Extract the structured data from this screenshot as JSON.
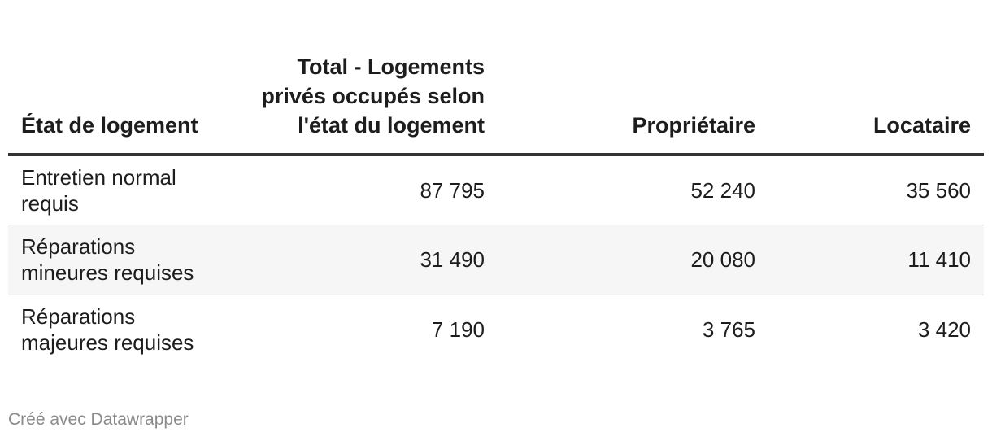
{
  "chart_data": {
    "type": "table",
    "columns": [
      "État de logement",
      "Total - Logements privés occupés selon l'état du logement",
      "Propriétaire",
      "Locataire"
    ],
    "rows": [
      {
        "label": "Entretien normal requis",
        "total": "87 795",
        "owner": "52 240",
        "renter": "35 560"
      },
      {
        "label": "Réparations mineures requises",
        "total": "31 490",
        "owner": "20 080",
        "renter": "11 410"
      },
      {
        "label": "Réparations majeures requises",
        "total": "7 190",
        "owner": "3 765",
        "renter": "3 420"
      }
    ],
    "colors": {
      "header_rule": "#333333",
      "alt_row": "#f6f6f6",
      "row_divider": "#e2e2e2",
      "footer_text": "#8a8a8a"
    }
  },
  "footer": {
    "credit": "Créé avec Datawrapper"
  }
}
